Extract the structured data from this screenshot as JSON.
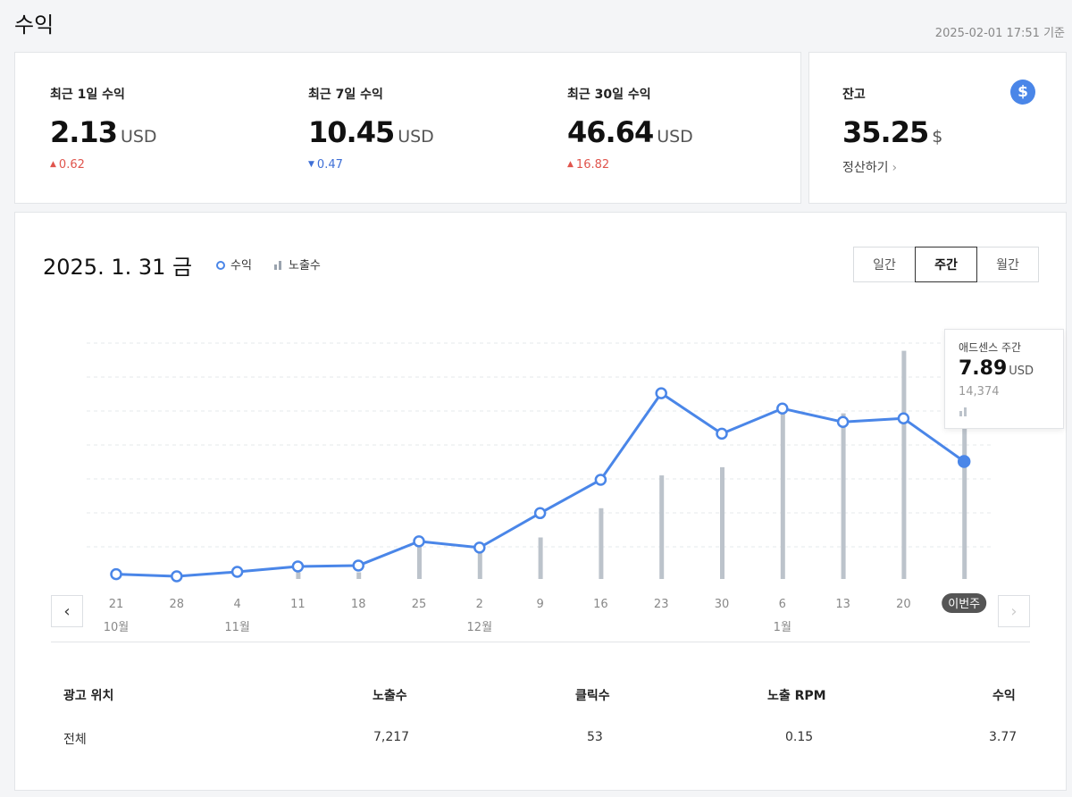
{
  "page": {
    "title": "수익",
    "timestamp": "2025-02-01 17:51 기준"
  },
  "summary": [
    {
      "label": "최근 1일 수익",
      "value": "2.13",
      "unit": "USD",
      "delta": "0.62",
      "direction": "up"
    },
    {
      "label": "최근 7일 수익",
      "value": "10.45",
      "unit": "USD",
      "delta": "0.47",
      "direction": "down"
    },
    {
      "label": "최근 30일 수익",
      "value": "46.64",
      "unit": "USD",
      "delta": "16.82",
      "direction": "up"
    }
  ],
  "balance": {
    "label": "잔고",
    "value": "35.25",
    "unit": "$",
    "settle_label": "정산하기",
    "icon": "dollar-icon",
    "icon_glyph": "$"
  },
  "chart_header": {
    "date": "2025. 1. 31 금",
    "legend": {
      "earnings": "수익",
      "impressions": "노출수"
    },
    "period_tabs": [
      {
        "label": "일간",
        "active": false
      },
      {
        "label": "주간",
        "active": true
      },
      {
        "label": "월간",
        "active": false
      }
    ]
  },
  "chart_data": {
    "type": "line",
    "x": [
      "21",
      "28",
      "4",
      "11",
      "18",
      "25",
      "2",
      "9",
      "16",
      "23",
      "30",
      "6",
      "13",
      "20",
      "이번주"
    ],
    "month_labels": [
      {
        "at": "21",
        "label": "10월"
      },
      {
        "at": "4",
        "label": "11월"
      },
      {
        "at": "2",
        "label": "12월"
      },
      {
        "at": "6",
        "label": "1월"
      }
    ],
    "series": [
      {
        "key": "earnings",
        "type": "line",
        "color": "#4a86e8",
        "values": [
          0.12,
          0.0,
          0.25,
          0.55,
          0.6,
          1.95,
          1.6,
          3.52,
          5.38,
          10.2,
          7.95,
          9.35,
          8.6,
          8.8,
          6.4
        ]
      },
      {
        "key": "impressions",
        "type": "bar",
        "color": "#bcc3cb",
        "values": [
          0,
          0,
          0,
          1300,
          1300,
          6900,
          5600,
          8100,
          13800,
          20200,
          21800,
          32200,
          32300,
          44500,
          31600
        ]
      }
    ],
    "ylim_earnings": [
      0,
      12
    ],
    "ylim_impressions": [
      0,
      46000
    ],
    "current_week_label": "이번주",
    "tooltip": {
      "title": "애드센스 주간",
      "value": "7.89",
      "unit": "USD",
      "impressions": "14,374"
    }
  },
  "table": {
    "headers": [
      "광고 위치",
      "노출수",
      "클릭수",
      "노출 RPM",
      "수익"
    ],
    "rows": [
      [
        "전체",
        "7,217",
        "53",
        "0.15",
        "3.77"
      ]
    ]
  }
}
